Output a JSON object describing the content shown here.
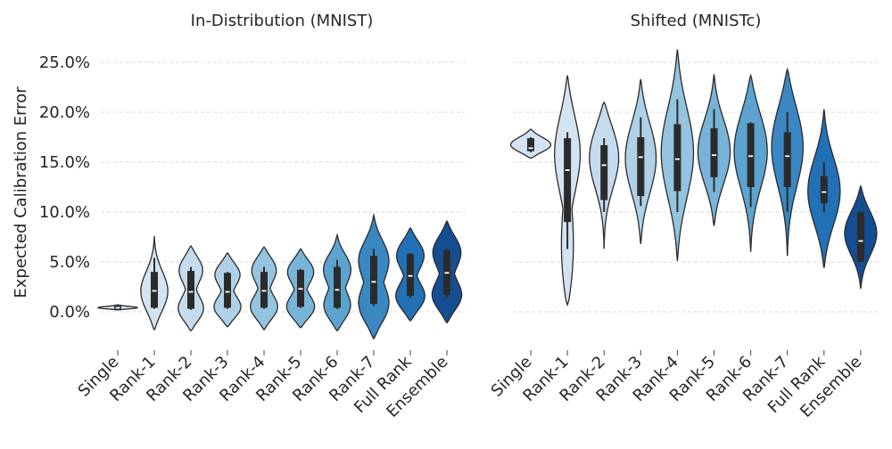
{
  "chart_data": {
    "type": "violin",
    "ylabel": "Expected Calibration Error",
    "ytick_labels": [
      "0.0%",
      "5.0%",
      "10.0%",
      "15.0%",
      "20.0%",
      "25.0%"
    ],
    "ytick_values": [
      0.0,
      0.05,
      0.1,
      0.15,
      0.2,
      0.25
    ],
    "ylim": [
      -0.04,
      0.28
    ],
    "grid": "horizontal dashed",
    "palette": [
      "#d4e3f2",
      "#c6dbef",
      "#afd1e7",
      "#94c4df",
      "#77b4d8",
      "#5ca3d0",
      "#3a87c2",
      "#2270b5",
      "#144e91"
    ],
    "panels": [
      {
        "title": "In-Distribution (MNIST)",
        "categories": [
          "Single",
          "Rank-1",
          "Rank-2",
          "Rank-3",
          "Rank-4",
          "Rank-5",
          "Rank-6",
          "Rank-7",
          "Full Rank",
          "Ensemble"
        ],
        "violins": [
          {
            "min": 0.002,
            "max": 0.007,
            "q1": 0.0025,
            "median": 0.004,
            "q3": 0.006,
            "wlo": 0.002,
            "whi": 0.007,
            "peak": 0.004,
            "width": 0.55,
            "shape": "single"
          },
          {
            "min": -0.018,
            "max": 0.076,
            "q1": 0.004,
            "median": 0.021,
            "q3": 0.04,
            "wlo": 0.003,
            "whi": 0.054,
            "peak": 0.018,
            "width": 0.38,
            "shape": "bulge"
          },
          {
            "min": -0.019,
            "max": 0.066,
            "q1": 0.003,
            "median": 0.02,
            "q3": 0.041,
            "wlo": 0.002,
            "whi": 0.045,
            "peak": 0.0,
            "peak2": 0.045,
            "width": 0.42,
            "shape": "bimodal"
          },
          {
            "min": -0.015,
            "max": 0.059,
            "q1": 0.004,
            "median": 0.02,
            "q3": 0.039,
            "wlo": 0.003,
            "whi": 0.04,
            "peak": 0.002,
            "peak2": 0.04,
            "width": 0.44,
            "shape": "bimodal"
          },
          {
            "min": -0.018,
            "max": 0.065,
            "q1": 0.004,
            "median": 0.021,
            "q3": 0.04,
            "wlo": 0.003,
            "whi": 0.045,
            "peak": 0.002,
            "peak2": 0.045,
            "width": 0.44,
            "shape": "bimodal"
          },
          {
            "min": -0.016,
            "max": 0.063,
            "q1": 0.005,
            "median": 0.023,
            "q3": 0.042,
            "wlo": 0.004,
            "whi": 0.043,
            "peak": 0.002,
            "peak2": 0.043,
            "width": 0.46,
            "shape": "bimodal"
          },
          {
            "min": -0.019,
            "max": 0.077,
            "q1": 0.004,
            "median": 0.022,
            "q3": 0.045,
            "wlo": 0.003,
            "whi": 0.052,
            "peak": 0.002,
            "peak2": 0.045,
            "width": 0.44,
            "shape": "bimodal"
          },
          {
            "min": -0.027,
            "max": 0.097,
            "q1": 0.008,
            "median": 0.03,
            "q3": 0.056,
            "wlo": 0.006,
            "whi": 0.063,
            "peak": 0.003,
            "peak2": 0.055,
            "width": 0.48,
            "shape": "bimodal"
          },
          {
            "min": -0.009,
            "max": 0.084,
            "q1": 0.016,
            "median": 0.036,
            "q3": 0.058,
            "wlo": 0.014,
            "whi": 0.059,
            "peak": 0.012,
            "peak2": 0.06,
            "width": 0.48,
            "shape": "bimodal"
          },
          {
            "min": -0.011,
            "max": 0.091,
            "q1": 0.017,
            "median": 0.039,
            "q3": 0.062,
            "wlo": 0.015,
            "whi": 0.063,
            "peak": 0.013,
            "peak2": 0.063,
            "width": 0.48,
            "shape": "bimodal"
          }
        ]
      },
      {
        "title": "Shifted (MNISTc)",
        "categories": [
          "Single",
          "Rank-1",
          "Rank-2",
          "Rank-3",
          "Rank-4",
          "Rank-5",
          "Rank-6",
          "Rank-7",
          "Full Rank",
          "Ensemble"
        ],
        "violins": [
          {
            "min": 0.154,
            "max": 0.183,
            "q1": 0.161,
            "median": 0.164,
            "q3": 0.174,
            "wlo": 0.16,
            "whi": 0.175,
            "peak": 0.167,
            "width": 0.55,
            "shape": "single"
          },
          {
            "min": 0.007,
            "max": 0.237,
            "q1": 0.09,
            "median": 0.142,
            "q3": 0.174,
            "wlo": 0.063,
            "whi": 0.18,
            "peak": 0.165,
            "peak2": 0.045,
            "width": 0.38,
            "shape": "skew"
          },
          {
            "min": 0.063,
            "max": 0.21,
            "q1": 0.112,
            "median": 0.147,
            "q3": 0.167,
            "wlo": 0.1,
            "whi": 0.174,
            "peak": 0.16,
            "width": 0.42,
            "shape": "bulge"
          },
          {
            "min": 0.068,
            "max": 0.233,
            "q1": 0.116,
            "median": 0.155,
            "q3": 0.175,
            "wlo": 0.106,
            "whi": 0.195,
            "peak": 0.155,
            "width": 0.42,
            "shape": "bulge"
          },
          {
            "min": 0.051,
            "max": 0.263,
            "q1": 0.121,
            "median": 0.153,
            "q3": 0.188,
            "wlo": 0.1,
            "whi": 0.213,
            "peak": 0.16,
            "width": 0.44,
            "shape": "bulge"
          },
          {
            "min": 0.086,
            "max": 0.238,
            "q1": 0.135,
            "median": 0.157,
            "q3": 0.184,
            "wlo": 0.12,
            "whi": 0.203,
            "peak": 0.16,
            "width": 0.44,
            "shape": "bulge"
          },
          {
            "min": 0.06,
            "max": 0.237,
            "q1": 0.125,
            "median": 0.156,
            "q3": 0.189,
            "wlo": 0.105,
            "whi": 0.19,
            "peak": 0.165,
            "width": 0.46,
            "shape": "bulge"
          },
          {
            "min": 0.056,
            "max": 0.243,
            "q1": 0.125,
            "median": 0.156,
            "q3": 0.18,
            "wlo": 0.1,
            "whi": 0.2,
            "peak": 0.17,
            "width": 0.44,
            "shape": "bulge"
          },
          {
            "min": 0.044,
            "max": 0.203,
            "q1": 0.109,
            "median": 0.12,
            "q3": 0.136,
            "wlo": 0.1,
            "whi": 0.15,
            "peak": 0.12,
            "width": 0.44,
            "shape": "bulge"
          },
          {
            "min": 0.023,
            "max": 0.126,
            "q1": 0.05,
            "median": 0.071,
            "q3": 0.1,
            "wlo": 0.05,
            "whi": 0.1,
            "peak": 0.08,
            "width": 0.44,
            "shape": "bulge"
          }
        ]
      }
    ]
  }
}
